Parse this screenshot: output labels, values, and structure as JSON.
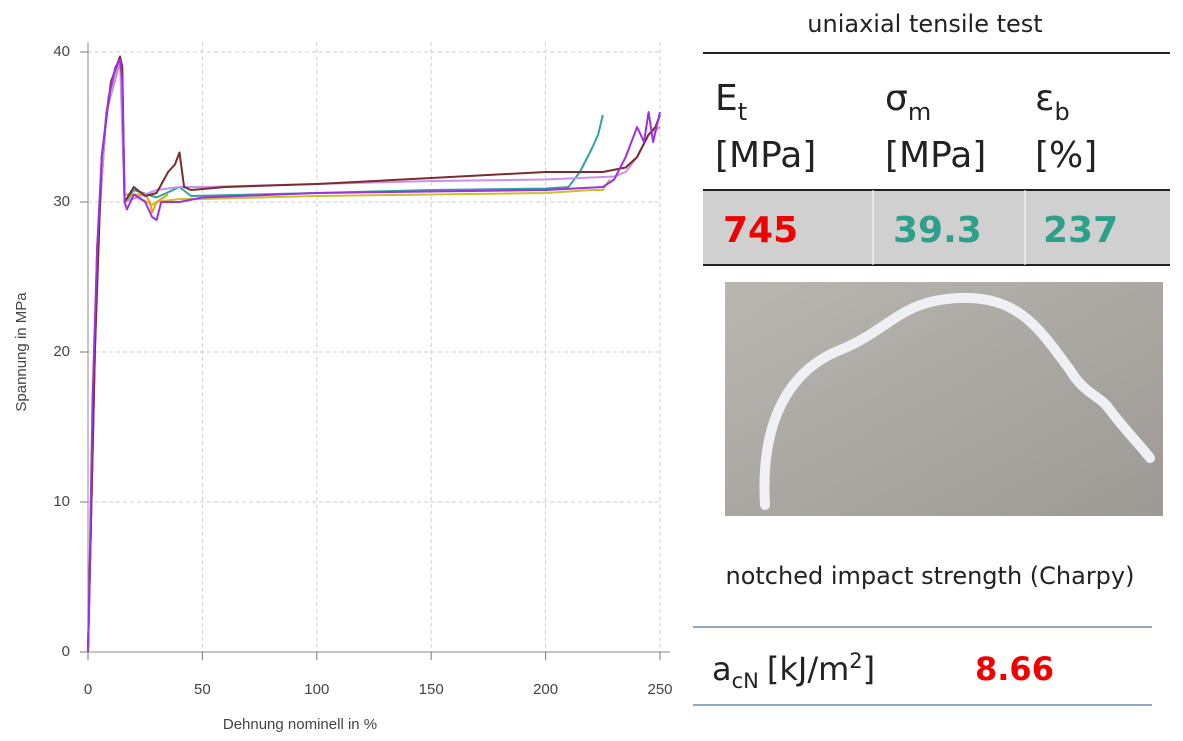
{
  "chart_data": {
    "type": "line",
    "x_label": "Dehnung nominell in %",
    "y_label": "Spannung in MPa",
    "xlim": [
      0,
      250
    ],
    "ylim": [
      0,
      40
    ],
    "xticks": [
      0,
      50,
      100,
      150,
      200,
      250
    ],
    "yticks": [
      0,
      10,
      20,
      30,
      40
    ],
    "grid": true,
    "series": [
      {
        "color": "#c9c22a",
        "x": [
          0,
          4,
          8,
          14,
          15,
          16,
          20,
          28,
          30,
          40,
          50,
          100,
          150,
          200,
          220,
          225,
          228
        ],
        "values": [
          0,
          27,
          36,
          39.4,
          37,
          30,
          30.5,
          29.8,
          30,
          30.2,
          30.2,
          30.4,
          30.5,
          30.6,
          30.8,
          30.8,
          31.5
        ]
      },
      {
        "color": "#e8a020",
        "x": [
          0,
          4,
          8,
          14,
          15,
          16,
          25,
          27,
          28,
          30,
          35
        ],
        "values": [
          0,
          27,
          36,
          39.3,
          37,
          30.5,
          30.5,
          30,
          29.3,
          30,
          30.5
        ]
      },
      {
        "color": "#2ea59a",
        "x": [
          0,
          4,
          8,
          14,
          15,
          16,
          20,
          30,
          40,
          45,
          100,
          150,
          200,
          210,
          215,
          220,
          223,
          225
        ],
        "values": [
          0,
          27,
          36,
          39.5,
          38,
          30,
          30.8,
          30.3,
          31,
          30.4,
          30.6,
          30.8,
          30.9,
          31,
          32,
          33.5,
          34.5,
          35.8
        ]
      },
      {
        "color": "#c890f0",
        "x": [
          0,
          4,
          8,
          14,
          16,
          30,
          40,
          50,
          100,
          150,
          200,
          230,
          235,
          240,
          245,
          250
        ],
        "values": [
          0,
          27,
          36,
          39.5,
          30,
          30.8,
          31,
          31,
          31.2,
          31.4,
          31.5,
          31.7,
          32,
          33,
          34.5,
          35
        ]
      },
      {
        "color": "#7b2c2c",
        "x": [
          0,
          3,
          6,
          10,
          14,
          15,
          16,
          20,
          25,
          30,
          35,
          38,
          40,
          42,
          45,
          60,
          100,
          150,
          200,
          225,
          235,
          240,
          245,
          248,
          250
        ],
        "values": [
          0,
          20,
          33,
          38,
          39.7,
          39,
          30,
          31,
          30.4,
          30.6,
          32,
          32.5,
          33.3,
          31,
          30.8,
          31,
          31.2,
          31.6,
          32,
          32,
          32.3,
          33,
          34.5,
          35,
          35.8
        ]
      },
      {
        "color": "#a030e0",
        "x": [
          0,
          1,
          2,
          4,
          6,
          9,
          12,
          14,
          15,
          16,
          17,
          20,
          25,
          28,
          30,
          32,
          35,
          40,
          50,
          100,
          150,
          200,
          225,
          230,
          235,
          240,
          243,
          245,
          247,
          250
        ],
        "values": [
          0,
          8,
          17,
          27,
          33,
          37,
          39,
          39.5,
          38,
          30,
          29.5,
          30.5,
          30,
          29,
          28.8,
          30,
          30,
          30,
          30.3,
          30.6,
          30.7,
          30.8,
          31,
          31.5,
          33,
          35,
          34,
          36,
          34,
          36
        ]
      }
    ]
  },
  "tensile_test": {
    "title": "uniaxial tensile test",
    "headers": [
      {
        "symbol": "E",
        "subscript": "t",
        "unit": "[MPa]"
      },
      {
        "symbol": "σ",
        "subscript": "m",
        "unit": "[MPa]"
      },
      {
        "symbol": "ε",
        "subscript": "b",
        "unit": "[%]"
      }
    ],
    "values": [
      "745",
      "39.3",
      "237"
    ]
  },
  "impact_test": {
    "title": "notched impact strength (Charpy)",
    "symbol": "a",
    "subscript": "cN",
    "unit_start": "[kJ/m",
    "unit_power": "2",
    "unit_end": "]",
    "value": "8.66"
  }
}
